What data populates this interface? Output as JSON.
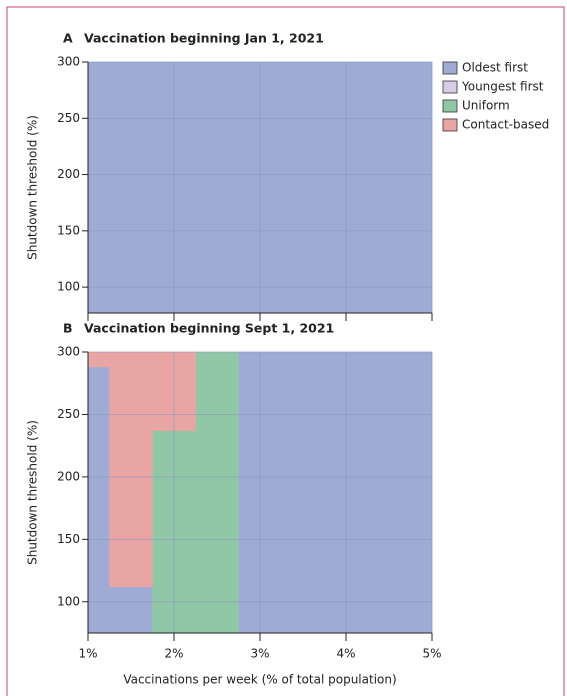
{
  "chart_data": {
    "type": "region",
    "series": [
      {
        "name": "Oldest first",
        "color": "#9eabd4"
      },
      {
        "name": "Youngest first",
        "color": "#d7cbe6"
      },
      {
        "name": "Uniform",
        "color": "#90c7a6"
      },
      {
        "name": "Contact-based",
        "color": "#e9a5a4"
      }
    ],
    "xlabel": "Vaccinations per week (% of total population)",
    "ylabel": "Shutdown threshold (%)",
    "xlim": [
      1,
      5
    ],
    "xticks": [
      {
        "value": 1,
        "label": "1%"
      },
      {
        "value": 2,
        "label": "2%"
      },
      {
        "value": 3,
        "label": "3%"
      },
      {
        "value": 4,
        "label": "4%"
      },
      {
        "value": 5,
        "label": "5%"
      }
    ],
    "grid": true,
    "panels": [
      {
        "label": "A",
        "title": "Vaccination beginning Jan 1, 2021",
        "ylim": [
          77,
          300
        ],
        "yticks": [
          100,
          150,
          200,
          250,
          300
        ],
        "regions": [
          [
            [
              1,
              5,
              77,
              300
            ]
          ],
          [],
          [],
          []
        ]
      },
      {
        "label": "B",
        "title": "Vaccination beginning Sept 1, 2021",
        "ylim": [
          75,
          300
        ],
        "yticks": [
          100,
          150,
          200,
          250,
          300
        ],
        "regions": [
          [
            [
              1,
              1.25,
              75,
              288
            ],
            [
              1.25,
              1.75,
              75,
              112
            ],
            [
              2.75,
              5,
              75,
              300
            ]
          ],
          [],
          [
            [
              1.75,
              2.25,
              75,
              237
            ],
            [
              2.25,
              2.75,
              75,
              300
            ]
          ],
          [
            [
              1,
              1.25,
              288,
              300
            ],
            [
              1.25,
              1.75,
              112,
              300
            ],
            [
              1.75,
              2.25,
              237,
              300
            ]
          ]
        ]
      }
    ]
  }
}
